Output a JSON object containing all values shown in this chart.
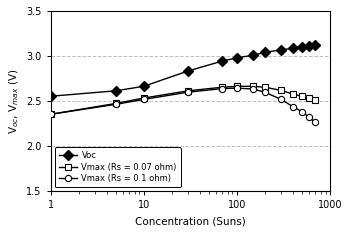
{
  "xlabel": "Concentration (Suns)",
  "ylabel": "V$_{oc}$, V$_{max}$ (V)",
  "xlim": [
    1,
    1000
  ],
  "ylim": [
    1.5,
    3.5
  ],
  "yticks": [
    1.5,
    2.0,
    2.5,
    3.0,
    3.5
  ],
  "grid_color": "#c0c0c0",
  "voc_x": [
    1,
    5,
    10,
    30,
    70,
    100,
    150,
    200,
    300,
    400,
    500,
    600,
    700
  ],
  "voc_y": [
    2.555,
    2.615,
    2.665,
    2.835,
    2.945,
    2.98,
    3.01,
    3.04,
    3.07,
    3.085,
    3.1,
    3.11,
    3.12
  ],
  "vmax1_x": [
    1,
    5,
    10,
    30,
    70,
    100,
    150,
    200,
    300,
    400,
    500,
    600,
    700
  ],
  "vmax1_y": [
    2.355,
    2.475,
    2.535,
    2.615,
    2.655,
    2.665,
    2.665,
    2.655,
    2.62,
    2.58,
    2.555,
    2.535,
    2.51
  ],
  "vmax2_x": [
    1,
    5,
    10,
    30,
    70,
    100,
    150,
    200,
    300,
    400,
    500,
    600,
    700
  ],
  "vmax2_y": [
    2.355,
    2.465,
    2.52,
    2.6,
    2.64,
    2.645,
    2.635,
    2.6,
    2.52,
    2.44,
    2.385,
    2.32,
    2.265
  ],
  "voc_label": "Voc",
  "vmax1_label": "Vmax (Rs = 0.07 ohm)",
  "vmax2_label": "Vmax (Rs = 0.1 ohm)",
  "line_color": "#000000",
  "marker_size_voc": 5,
  "marker_size_vmax": 4.5,
  "bg_color": "#ffffff"
}
